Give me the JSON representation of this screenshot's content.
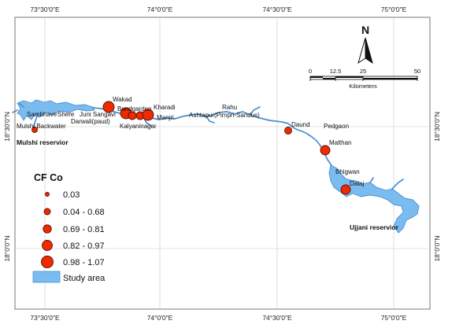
{
  "map": {
    "coords": {
      "top_x": [
        "73°30'0\"E",
        "74°0'0\"E",
        "74°30'0\"E",
        "75°0'0\"E"
      ],
      "bottom_x": [
        "73°30'0\"E",
        "74°0'0\"E",
        "74°30'0\"E",
        "75°0'0\"E"
      ],
      "left_y": [
        "18°30'0\"N",
        "18°0'0\"N"
      ],
      "right_y": [
        "18°30'0\"N",
        "18°0'0\"N"
      ]
    },
    "north_arrow": {
      "label": "N",
      "icon": "north-arrow-icon"
    },
    "scale_bar": {
      "ticks": [
        "0",
        "12.5",
        "25",
        "50"
      ],
      "unit": "Kilometers"
    },
    "reservoirs": {
      "mulshi": "Mulshi reservior",
      "ujjani": "Ujjani reservior"
    },
    "sites": [
      {
        "name": "Sambhave",
        "value_class": ""
      },
      {
        "name": "Shere",
        "value_class": ""
      },
      {
        "name": "Mulshi Backwater",
        "value_class": "0.04 - 0.68"
      },
      {
        "name": "Darwali(paud)",
        "value_class": ""
      },
      {
        "name": "Juni Sangavi",
        "value_class": ""
      },
      {
        "name": "Wakad",
        "value_class": "0.98 - 1.07"
      },
      {
        "name": "Bundgarden",
        "value_class": "0.98 - 1.07"
      },
      {
        "name": "Kalyaninagar",
        "value_class": "0.69 - 0.81"
      },
      {
        "name": "Kharadi",
        "value_class": "0.98 - 1.07"
      },
      {
        "name": "Manjri",
        "value_class": "0.69 - 0.81"
      },
      {
        "name": "Rahu",
        "value_class": ""
      },
      {
        "name": "Ashtapur(Pimpri-Sandus)",
        "value_class": ""
      },
      {
        "name": "Daund",
        "value_class": "0.69 - 0.81"
      },
      {
        "name": "Pedgaon",
        "value_class": ""
      },
      {
        "name": "Malthan",
        "value_class": "0.82 - 0.97"
      },
      {
        "name": "Bhigwan",
        "value_class": ""
      },
      {
        "name": "Dalaj",
        "value_class": "0.82 - 0.97"
      }
    ],
    "legend": {
      "title": "CF Co",
      "classes": [
        "0.03",
        "0.04 - 0.68",
        "0.69 - 0.81",
        "0.82 - 0.97",
        "0.98 - 1.07"
      ],
      "study_area": "Study area"
    },
    "colors": {
      "water": "#7bbcf0",
      "water_outline": "#4a8fd0",
      "site": "#ee2a00"
    }
  }
}
